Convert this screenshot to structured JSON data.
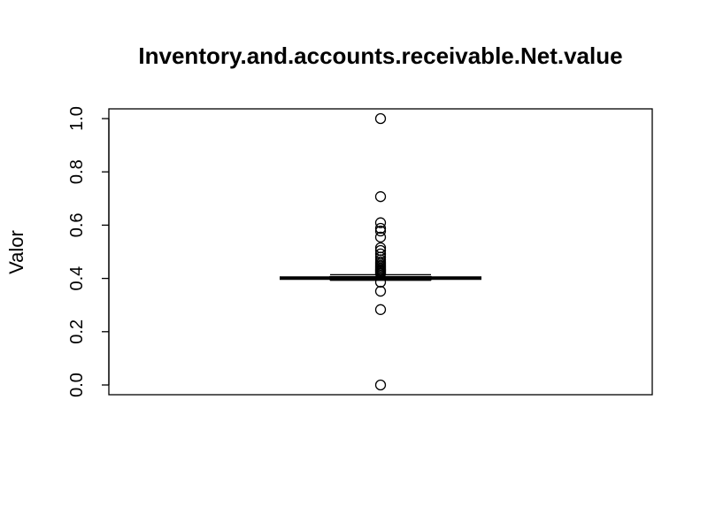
{
  "chart_data": {
    "type": "boxplot",
    "title": "Inventory.and.accounts.receivable.Net.value",
    "xlabel": "",
    "ylabel": "Valor",
    "ylim": [
      0.0,
      1.0
    ],
    "yticks": [
      "0.0",
      "0.2",
      "0.4",
      "0.6",
      "0.8",
      "1.0"
    ],
    "grid": false,
    "legend": "none",
    "box": {
      "median": 0.401,
      "q1": 0.395,
      "q3": 0.407,
      "whisker_low": 0.393,
      "whisker_high": 0.414
    },
    "outliers": [
      1.0,
      0.707,
      0.609,
      0.588,
      0.578,
      0.555,
      0.515,
      0.505,
      0.492,
      0.48,
      0.47,
      0.462,
      0.455,
      0.449,
      0.444,
      0.439,
      0.434,
      0.43,
      0.426,
      0.422,
      0.418,
      0.386,
      0.352,
      0.283,
      0.0
    ]
  }
}
